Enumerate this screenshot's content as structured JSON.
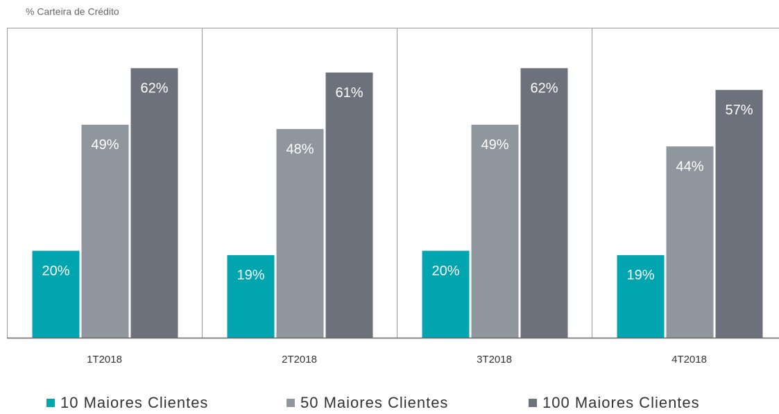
{
  "chart_data": {
    "type": "bar",
    "title": "% Carteira de Crédito",
    "categories": [
      "1T2018",
      "2T2018",
      "3T2018",
      "4T2018"
    ],
    "series": [
      {
        "name": "10 Maiores Clientes",
        "color": "#00a5b0",
        "values": [
          20,
          19,
          20,
          19
        ],
        "value_labels": [
          "20%",
          "19%",
          "20%",
          "19%"
        ]
      },
      {
        "name": "50 Maiores Clientes",
        "color": "#8f969e",
        "values": [
          49,
          48,
          49,
          44
        ],
        "value_labels": [
          "49%",
          "48%",
          "49%",
          "44%"
        ]
      },
      {
        "name": "100 Maiores Clientes",
        "color": "#6d717b",
        "values": [
          62,
          61,
          62,
          57
        ],
        "value_labels": [
          "62%",
          "61%",
          "62%",
          "57%"
        ]
      }
    ],
    "ylim": [
      0,
      71.3
    ],
    "legend": "bottom"
  }
}
